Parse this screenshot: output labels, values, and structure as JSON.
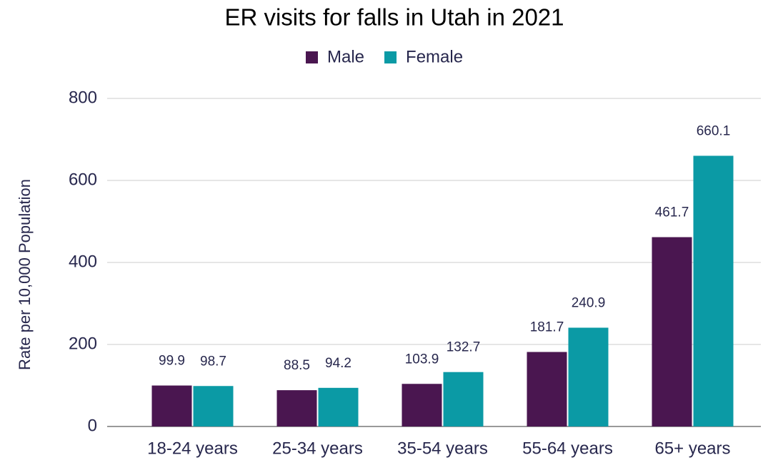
{
  "chart_data": {
    "type": "bar",
    "title": "ER visits for falls in Utah in 2021",
    "y_label": "Rate per 10,000 Population",
    "categories": [
      "18-24 years",
      "25-34 years",
      "35-54 years",
      "55-64 years",
      "65+ years"
    ],
    "series": [
      {
        "name": "Male",
        "color": "#4a1650",
        "values": [
          99.9,
          88.5,
          103.9,
          181.7,
          461.7
        ]
      },
      {
        "name": "Female",
        "color": "#0b9aa5",
        "values": [
          98.7,
          94.2,
          132.7,
          240.9,
          660.1
        ]
      }
    ],
    "ylim": [
      0,
      800
    ],
    "yticks": [
      0,
      200,
      400,
      600,
      800
    ],
    "grid": true,
    "legend": "top"
  }
}
